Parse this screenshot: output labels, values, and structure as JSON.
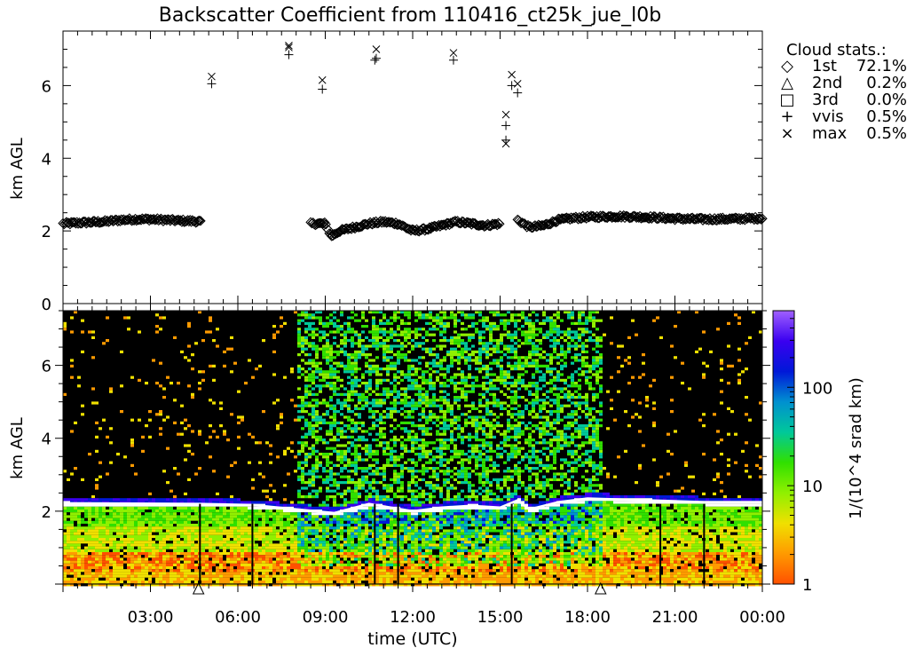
{
  "chart_data": [
    {
      "type": "scatter",
      "title": "Backscatter Coefficient from 110416_ct25k_jue_l0b",
      "ylabel": "km AGL",
      "xlim": [
        0,
        24
      ],
      "ylim": [
        0,
        7.5
      ],
      "yticks": [
        "0",
        "2",
        "4",
        "6"
      ],
      "legend": {
        "title": "Cloud stats.:",
        "position": "right",
        "entries": [
          {
            "marker": "diamond",
            "symbol": "◇",
            "label": "1st",
            "value": "72.1%"
          },
          {
            "marker": "triangle",
            "symbol": "△",
            "label": "2nd",
            "value": "0.2%"
          },
          {
            "marker": "square",
            "symbol": "□",
            "label": "3rd",
            "value": "0.0%"
          },
          {
            "marker": "plus",
            "symbol": "+",
            "label": "vvis",
            "value": "0.5%"
          },
          {
            "marker": "cross",
            "symbol": "×",
            "label": "max",
            "value": "0.5%"
          }
        ]
      },
      "series": [
        {
          "name": "1st",
          "marker": "diamond",
          "segments": [
            {
              "x_start": 0.0,
              "x_end": 4.75,
              "points": [
                [
                  0.0,
                  2.2
                ],
                [
                  0.5,
                  2.22
                ],
                [
                  1.0,
                  2.24
                ],
                [
                  1.5,
                  2.26
                ],
                [
                  2.0,
                  2.3
                ],
                [
                  2.5,
                  2.32
                ],
                [
                  3.0,
                  2.32
                ],
                [
                  3.5,
                  2.3
                ],
                [
                  4.0,
                  2.28
                ],
                [
                  4.5,
                  2.27
                ],
                [
                  4.75,
                  2.25
                ]
              ]
            },
            {
              "x_start": 8.5,
              "x_end": 15.0,
              "points": [
                [
                  8.5,
                  2.2
                ],
                [
                  9.0,
                  2.2
                ],
                [
                  9.2,
                  1.85
                ],
                [
                  9.5,
                  2.0
                ],
                [
                  10.0,
                  2.1
                ],
                [
                  10.5,
                  2.2
                ],
                [
                  11.0,
                  2.25
                ],
                [
                  11.5,
                  2.2
                ],
                [
                  12.0,
                  2.0
                ],
                [
                  12.5,
                  2.05
                ],
                [
                  13.0,
                  2.15
                ],
                [
                  13.5,
                  2.25
                ],
                [
                  14.0,
                  2.2
                ],
                [
                  14.5,
                  2.15
                ],
                [
                  15.0,
                  2.2
                ]
              ]
            },
            {
              "x_start": 15.6,
              "x_end": 24.0,
              "points": [
                [
                  15.6,
                  2.3
                ],
                [
                  16.0,
                  2.1
                ],
                [
                  16.5,
                  2.15
                ],
                [
                  17.0,
                  2.3
                ],
                [
                  17.5,
                  2.35
                ],
                [
                  18.0,
                  2.38
                ],
                [
                  19.0,
                  2.4
                ],
                [
                  20.0,
                  2.38
                ],
                [
                  21.0,
                  2.34
                ],
                [
                  22.0,
                  2.32
                ],
                [
                  23.0,
                  2.33
                ],
                [
                  24.0,
                  2.35
                ]
              ]
            }
          ]
        },
        {
          "name": "vvis",
          "marker": "plus",
          "points": [
            [
              5.1,
              6.05
            ],
            [
              7.75,
              6.85
            ],
            [
              8.9,
              5.9
            ],
            [
              10.75,
              6.75
            ],
            [
              10.7,
              6.7
            ],
            [
              13.4,
              6.7
            ],
            [
              15.2,
              4.5
            ],
            [
              15.2,
              4.9
            ],
            [
              15.4,
              6.0
            ],
            [
              15.6,
              5.8
            ]
          ]
        },
        {
          "name": "max",
          "marker": "cross",
          "points": [
            [
              5.1,
              6.25
            ],
            [
              7.75,
              7.05
            ],
            [
              7.75,
              7.1
            ],
            [
              8.9,
              6.15
            ],
            [
              10.75,
              7.0
            ],
            [
              13.4,
              6.9
            ],
            [
              15.2,
              5.2
            ],
            [
              15.2,
              4.4
            ],
            [
              15.4,
              6.3
            ],
            [
              15.6,
              6.05
            ]
          ]
        }
      ]
    },
    {
      "type": "heatmap",
      "xlabel": "time (UTC)",
      "ylabel": "km AGL",
      "xlim": [
        0,
        24
      ],
      "ylim": [
        0,
        7.5
      ],
      "xticks": [
        {
          "value": 3,
          "label": "03:00"
        },
        {
          "value": 6,
          "label": "06:00"
        },
        {
          "value": 9,
          "label": "09:00"
        },
        {
          "value": 12,
          "label": "12:00"
        },
        {
          "value": 15,
          "label": "15:00"
        },
        {
          "value": 18,
          "label": "18:00"
        },
        {
          "value": 21,
          "label": "21:00"
        },
        {
          "value": 24,
          "label": "00:00"
        }
      ],
      "yticks": [
        "2",
        "4",
        "6"
      ],
      "colorbar": {
        "label": "1/(10^4 srad km)",
        "scale": "log",
        "range": [
          1,
          600
        ],
        "ticks": [
          "1",
          "10",
          "100"
        ],
        "colors": [
          "#ff5000",
          "#ff9a00",
          "#f0e000",
          "#90f000",
          "#30e000",
          "#00c89a",
          "#0090d0",
          "#0018d8",
          "#3a00f0",
          "#a060ff"
        ]
      },
      "cloud_base_km": [
        [
          0,
          2.22
        ],
        [
          4.7,
          2.2
        ],
        [
          6.5,
          2.17
        ],
        [
          9.3,
          1.95
        ],
        [
          10.5,
          2.2
        ],
        [
          12.0,
          2.0
        ],
        [
          13.0,
          2.1
        ],
        [
          14.0,
          2.15
        ],
        [
          15.0,
          2.1
        ],
        [
          15.6,
          2.3
        ],
        [
          16.0,
          2.05
        ],
        [
          17.0,
          2.25
        ],
        [
          18.0,
          2.35
        ],
        [
          20.0,
          2.3
        ],
        [
          22.0,
          2.25
        ],
        [
          24.0,
          2.25
        ]
      ],
      "noisy_periods_hours": [
        [
          8.0,
          18.5
        ]
      ],
      "triangle_markers_hours": [
        4.65,
        18.45
      ],
      "vertical_gaps_hours": [
        4.7,
        6.5,
        10.7,
        11.5,
        15.4,
        20.5,
        22.0
      ]
    }
  ]
}
